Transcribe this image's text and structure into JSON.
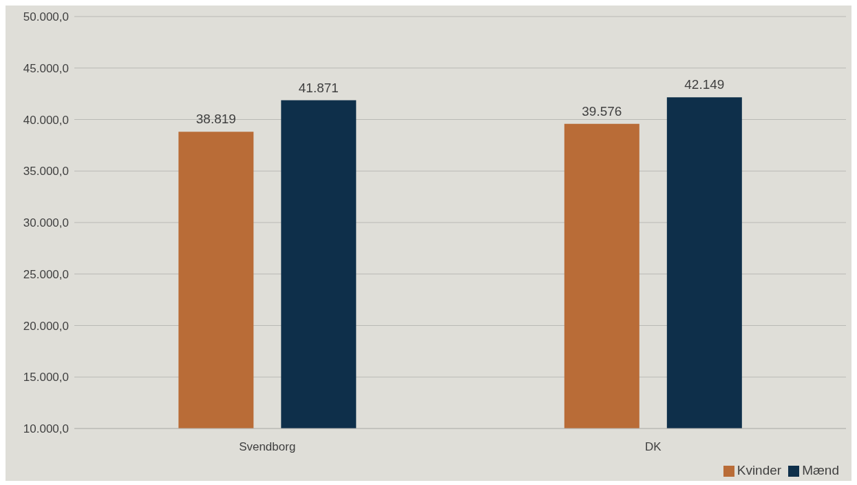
{
  "chart_data": {
    "type": "bar",
    "categories": [
      "Svendborg",
      "DK"
    ],
    "series": [
      {
        "name": "Kvinder",
        "color": "#b96c37",
        "values": [
          38819,
          39576
        ],
        "value_labels": [
          "38.819",
          "39.576"
        ]
      },
      {
        "name": "Mænd",
        "color": "#0e2f4a",
        "values": [
          41871,
          42149
        ],
        "value_labels": [
          "41.871",
          "42.149"
        ]
      }
    ],
    "ylim": [
      10000,
      50000
    ],
    "yticks": [
      {
        "value": 10000,
        "label": "10.000,0"
      },
      {
        "value": 15000,
        "label": "15.000,0"
      },
      {
        "value": 20000,
        "label": "20.000,0"
      },
      {
        "value": 25000,
        "label": "25.000,0"
      },
      {
        "value": 30000,
        "label": "30.000,0"
      },
      {
        "value": 35000,
        "label": "35.000,0"
      },
      {
        "value": 40000,
        "label": "40.000,0"
      },
      {
        "value": 45000,
        "label": "45.000,0"
      },
      {
        "value": 50000,
        "label": "50.000,0"
      }
    ],
    "grid": "y",
    "legend": "bottom right"
  }
}
